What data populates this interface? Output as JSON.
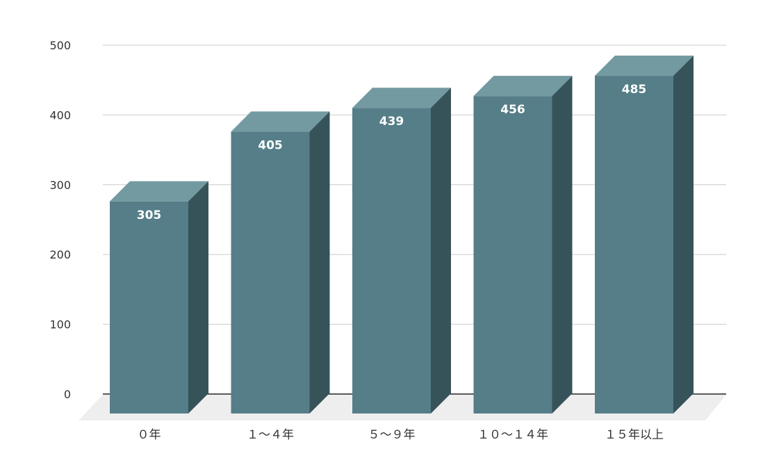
{
  "chart_data": {
    "type": "bar",
    "categories": [
      "０年",
      "１～４年",
      "５～９年",
      "１０～１４年",
      "１５年以上"
    ],
    "values": [
      305,
      405,
      439,
      456,
      485
    ],
    "title": "",
    "xlabel": "",
    "ylabel": "",
    "ylim": [
      0,
      500
    ],
    "yticks": [
      0,
      100,
      200,
      300,
      400,
      500
    ],
    "grid": true,
    "legend": "none",
    "style": "3d-column",
    "colors": {
      "front": "#557e88",
      "top": "#739aa1",
      "side": "#36535a",
      "floor": "#eeeeee",
      "grid": "#cccccc",
      "axis": "#222222"
    }
  }
}
